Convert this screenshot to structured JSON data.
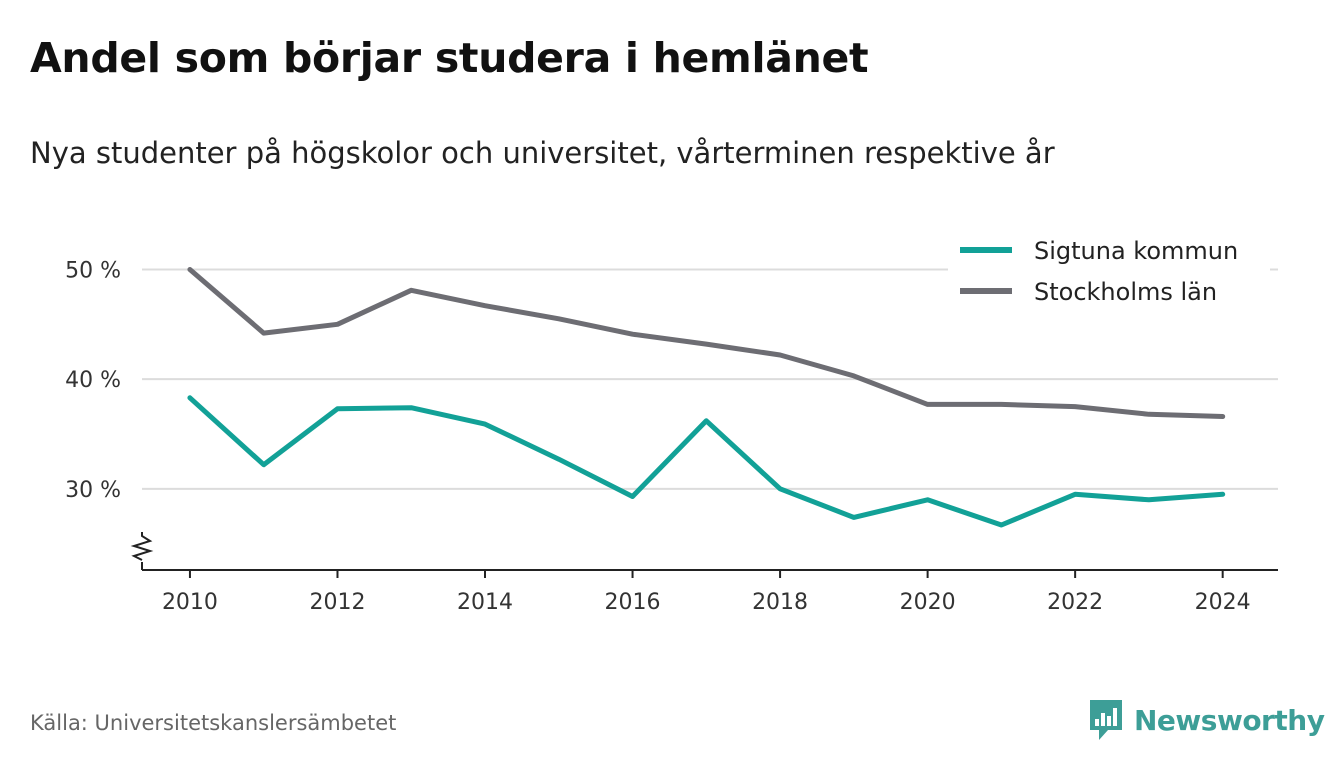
{
  "title": "Andel som börjar studera i hemlänet",
  "subtitle": "Nya studenter på högskolor och universitet, vårterminen respektive år",
  "source": "Källa: Universitetskanslersämbetet",
  "brand": {
    "name": "Newsworthy",
    "icon": "newsworthy-logo-icon",
    "color": "#3d9e97"
  },
  "chart_data": {
    "type": "line",
    "x": [
      2010,
      2011,
      2012,
      2013,
      2014,
      2015,
      2016,
      2017,
      2018,
      2019,
      2020,
      2021,
      2022,
      2023,
      2024
    ],
    "series": [
      {
        "name": "Sigtuna kommun",
        "color": "#12a197",
        "values": [
          38.3,
          32.2,
          37.3,
          37.4,
          35.9,
          32.7,
          29.3,
          36.2,
          30.0,
          27.4,
          29.0,
          26.7,
          29.5,
          29.0,
          29.5
        ]
      },
      {
        "name": "Stockholms län",
        "color": "#6d6d73",
        "values": [
          50.0,
          44.2,
          45.0,
          48.1,
          46.7,
          45.5,
          44.1,
          43.2,
          42.2,
          40.3,
          37.7,
          37.7,
          37.5,
          36.8,
          36.6
        ]
      }
    ],
    "xticks": [
      2010,
      2012,
      2014,
      2016,
      2018,
      2020,
      2022,
      2024
    ],
    "xtick_labels": [
      "2010",
      "2012",
      "2014",
      "2016",
      "2018",
      "2020",
      "2022",
      "2024"
    ],
    "yticks": [
      30,
      40,
      50
    ],
    "ytick_labels": [
      "30 %",
      "40 %",
      "50 %"
    ],
    "xlim": [
      2009.35,
      2024.75
    ],
    "ylim": [
      22.6,
      53.6
    ],
    "y_axis_break": true,
    "grid": "horizontal",
    "legend": "top-right",
    "xlabel": "",
    "ylabel": ""
  }
}
